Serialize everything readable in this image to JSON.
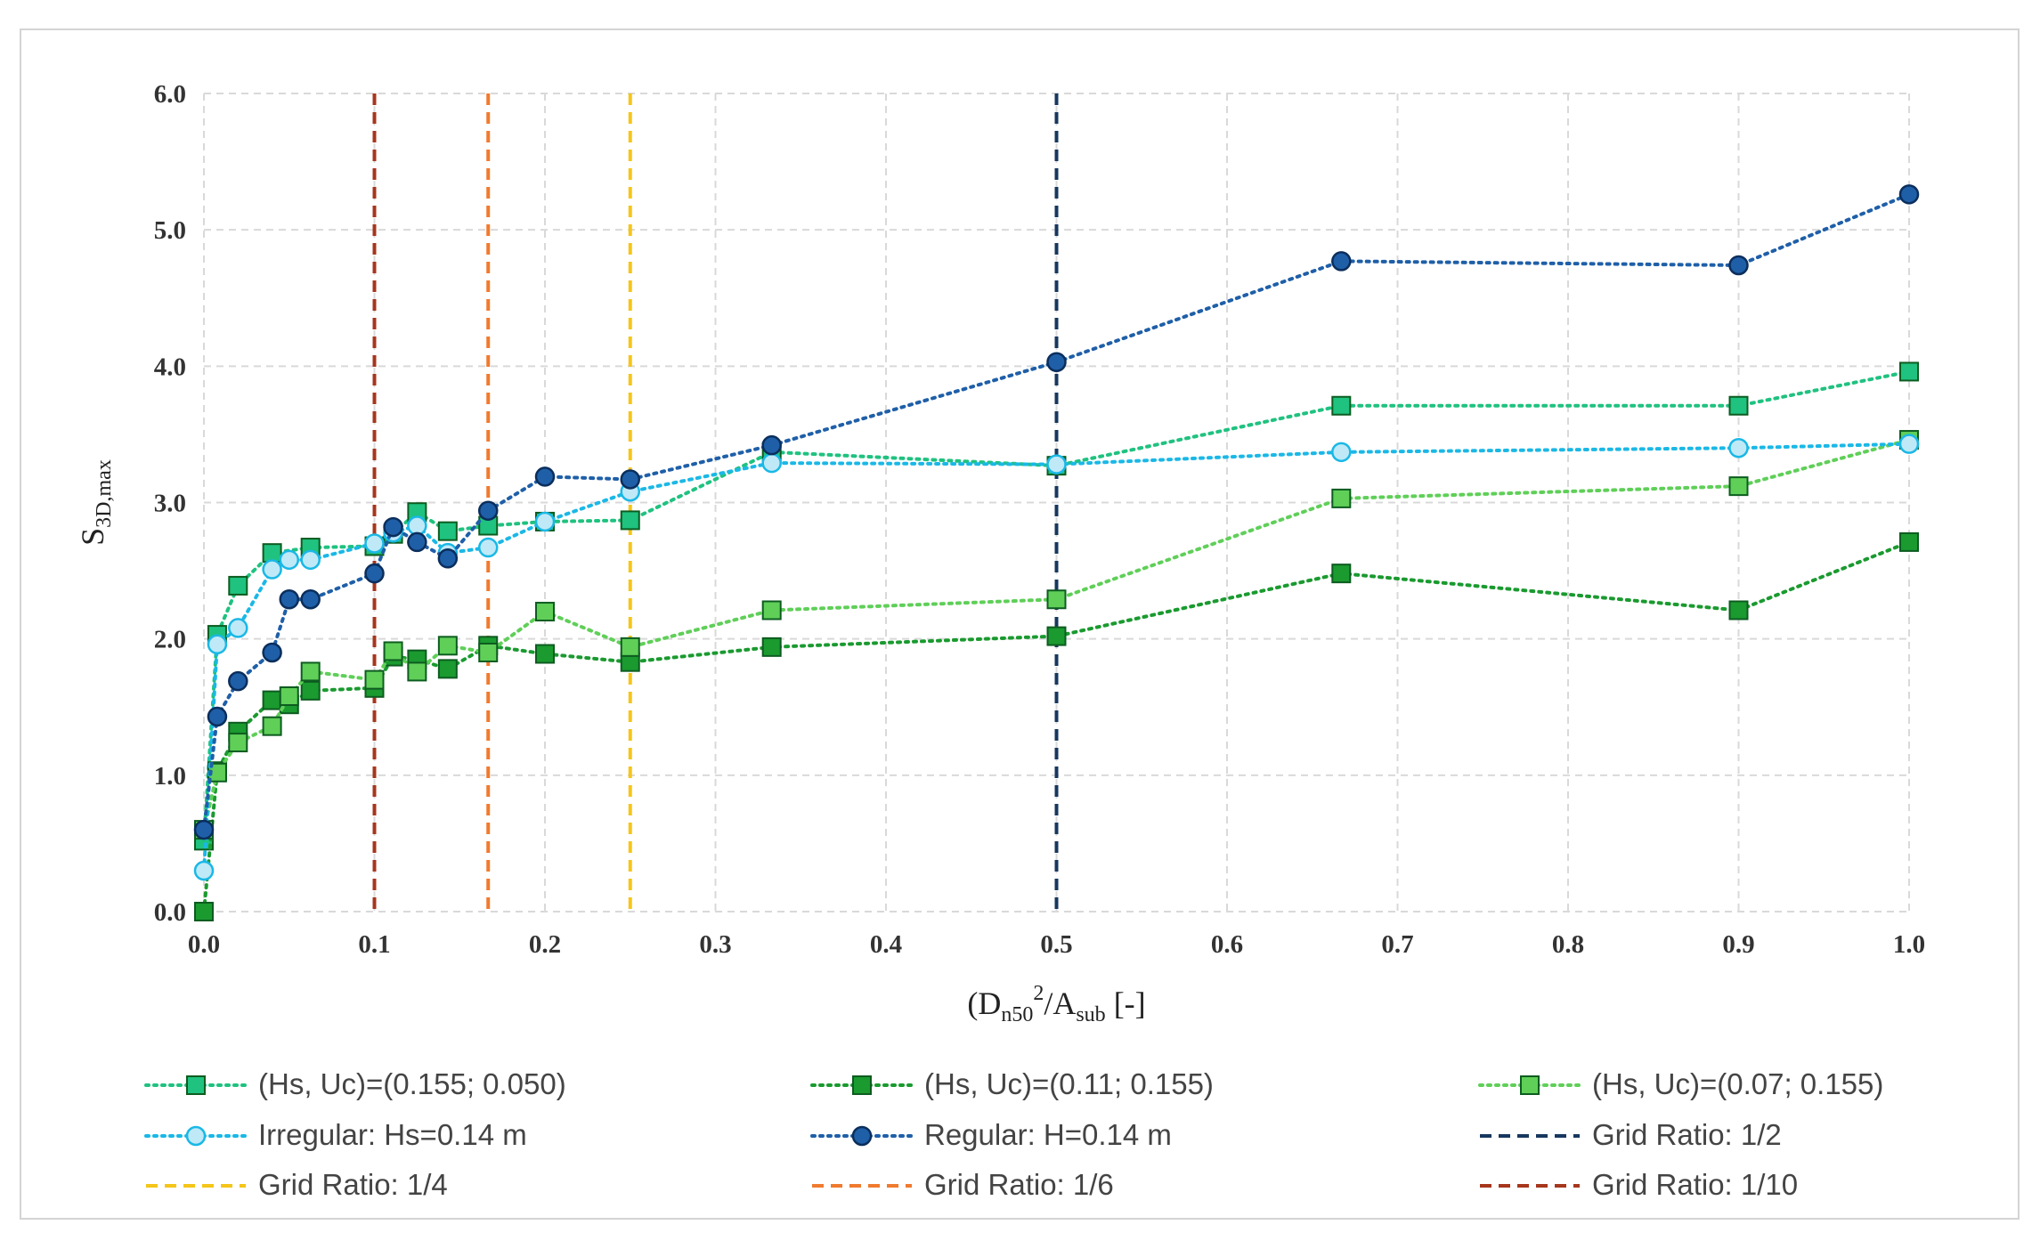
{
  "chart_data": {
    "type": "line",
    "title": "",
    "xlabel": {
      "base": "(D",
      "sub1": "n50",
      "sup": "2",
      "mid": "/A",
      "sub2": "sub",
      "tail": " [-]"
    },
    "ylabel": {
      "base": "S",
      "sub": "3D,max"
    },
    "xlim": [
      0,
      1.0
    ],
    "ylim": [
      0,
      6.0
    ],
    "x_ticks": [
      "0.0",
      "0.1",
      "0.2",
      "0.3",
      "0.4",
      "0.5",
      "0.6",
      "0.7",
      "0.8",
      "0.9",
      "1.0"
    ],
    "y_ticks": [
      "0.0",
      "1.0",
      "2.0",
      "3.0",
      "4.0",
      "5.0",
      "6.0"
    ],
    "grid": true,
    "legend_position": "bottom",
    "series": [
      {
        "name": "(Hs, Uc)=(0.155; 0.050)",
        "color": "#1fc27f",
        "marker": "square",
        "line": "dotted",
        "x": [
          0.0,
          0.0078,
          0.02,
          0.04,
          0.0625,
          0.1,
          0.111,
          0.125,
          0.143,
          0.1667,
          0.2,
          0.25,
          0.333,
          0.5,
          0.667,
          0.9,
          1.0
        ],
        "y": [
          0.52,
          2.03,
          2.39,
          2.63,
          2.67,
          2.68,
          2.77,
          2.93,
          2.79,
          2.83,
          2.86,
          2.87,
          3.37,
          3.27,
          3.71,
          3.71,
          3.96
        ]
      },
      {
        "name": "(Hs, Uc)=(0.11; 0.155)",
        "color": "#1a9a2f",
        "marker": "square",
        "line": "dotted",
        "x": [
          0.0,
          0.0078,
          0.02,
          0.04,
          0.05,
          0.0625,
          0.1,
          0.111,
          0.125,
          0.143,
          0.1667,
          0.2,
          0.25,
          0.333,
          0.5,
          0.667,
          0.9,
          1.0
        ],
        "y": [
          0.0,
          1.03,
          1.32,
          1.55,
          1.52,
          1.62,
          1.64,
          1.87,
          1.85,
          1.78,
          1.95,
          1.89,
          1.83,
          1.94,
          2.02,
          2.48,
          2.21,
          2.71
        ]
      },
      {
        "name": "(Hs, Uc)=(0.07; 0.155)",
        "color": "#5fcf58",
        "marker": "square",
        "line": "dotted",
        "x": [
          0.0,
          0.0078,
          0.02,
          0.04,
          0.05,
          0.0625,
          0.1,
          0.111,
          0.125,
          0.143,
          0.1667,
          0.2,
          0.25,
          0.333,
          0.5,
          0.667,
          0.9,
          1.0
        ],
        "y": [
          0.6,
          1.02,
          1.24,
          1.36,
          1.58,
          1.76,
          1.7,
          1.91,
          1.76,
          1.95,
          1.9,
          2.2,
          1.94,
          2.21,
          2.29,
          3.03,
          3.12,
          3.46
        ]
      },
      {
        "name": "Irregular: Hs=0.14 m",
        "color": "#1ab8e6",
        "marker": "circle",
        "line": "dotted",
        "x": [
          0.0,
          0.0078,
          0.02,
          0.04,
          0.05,
          0.0625,
          0.1,
          0.111,
          0.125,
          0.143,
          0.1667,
          0.2,
          0.25,
          0.333,
          0.5,
          0.667,
          0.9,
          1.0
        ],
        "y": [
          0.3,
          1.96,
          2.08,
          2.51,
          2.58,
          2.58,
          2.7,
          2.78,
          2.83,
          2.63,
          2.67,
          2.86,
          3.08,
          3.29,
          3.28,
          3.37,
          3.4,
          3.43
        ]
      },
      {
        "name": "Regular: H=0.14 m",
        "color": "#1f5fa8",
        "marker": "circle",
        "line": "dotted",
        "x": [
          0.0,
          0.0078,
          0.02,
          0.04,
          0.05,
          0.0625,
          0.1,
          0.111,
          0.125,
          0.143,
          0.1667,
          0.2,
          0.25,
          0.333,
          0.5,
          0.667,
          0.9,
          1.0
        ],
        "y": [
          0.6,
          1.43,
          1.69,
          1.9,
          2.29,
          2.29,
          2.48,
          2.82,
          2.71,
          2.59,
          2.94,
          3.19,
          3.17,
          3.42,
          4.03,
          4.77,
          4.74,
          5.26
        ]
      }
    ],
    "vertical_lines": [
      {
        "name": "Grid Ratio: 1/2",
        "x": 0.5,
        "color": "#17375e"
      },
      {
        "name": "Grid Ratio: 1/4",
        "x": 0.25,
        "color": "#f5c518"
      },
      {
        "name": "Grid Ratio: 1/6",
        "x": 0.1667,
        "color": "#f07a2e"
      },
      {
        "name": "Grid Ratio: 1/10",
        "x": 0.1,
        "color": "#a6361c"
      }
    ],
    "legend": [
      "(Hs, Uc)=(0.155; 0.050)",
      "(Hs, Uc)=(0.11; 0.155)",
      "(Hs, Uc)=(0.07; 0.155)",
      "Irregular: Hs=0.14 m",
      "Regular: H=0.14 m",
      "Grid Ratio: 1/2",
      "Grid Ratio: 1/4",
      "Grid Ratio: 1/6",
      "Grid Ratio: 1/10"
    ]
  }
}
